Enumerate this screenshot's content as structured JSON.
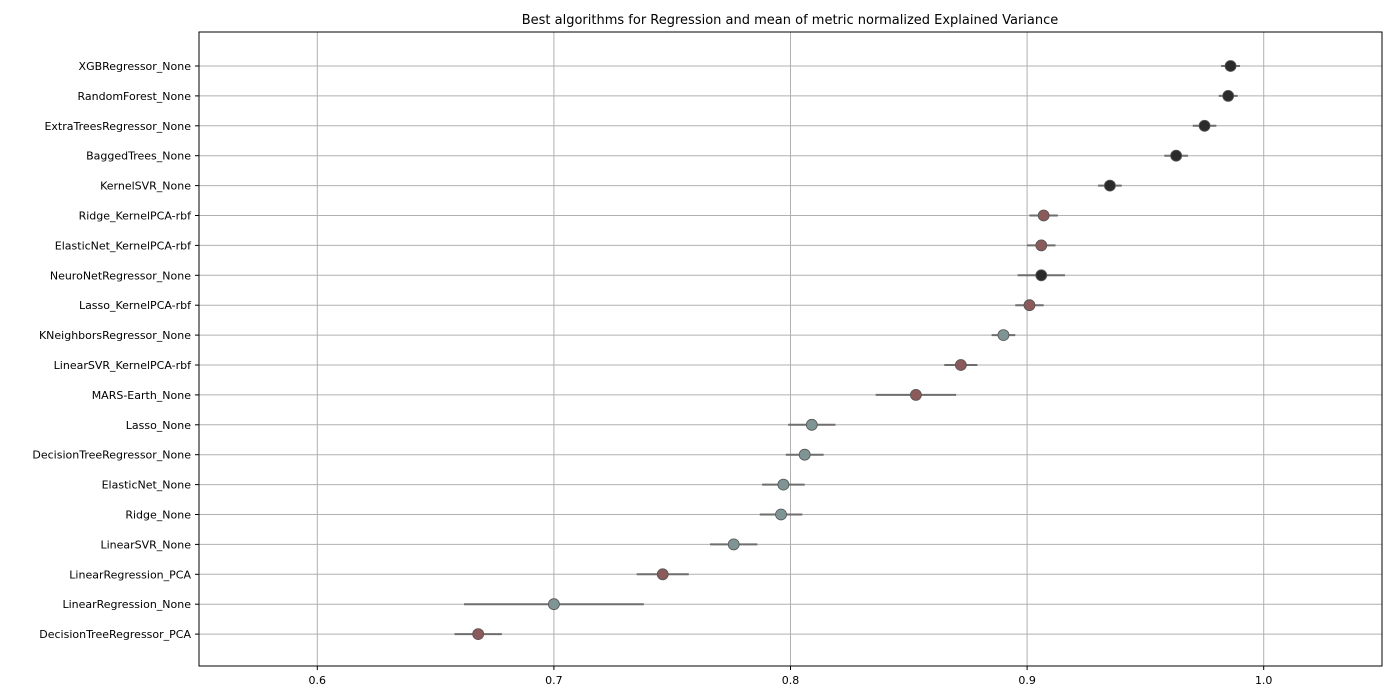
{
  "chart_data": {
    "type": "scatter",
    "subtype": "dot-with-error-bars",
    "title": "Best algorithms for Regression and mean of metric normalized Explained Variance",
    "xlabel": "",
    "ylabel": "",
    "xlim": [
      0.55,
      1.05
    ],
    "x_ticks": [
      0.6,
      0.7,
      0.8,
      0.9,
      1.0
    ],
    "x_tick_labels": [
      "0.6",
      "0.7",
      "0.8",
      "0.9",
      "1.0"
    ],
    "grid": true,
    "legend": "none",
    "colors": {
      "black": "#2b2b2b",
      "brown": "#8b5a5a",
      "gray": "#7f9494",
      "error_bar": "#6e6e6e"
    },
    "categories": [
      "XGBRegressor_None",
      "RandomForest_None",
      "ExtraTreesRegressor_None",
      "BaggedTrees_None",
      "KernelSVR_None",
      "Ridge_KernelPCA-rbf",
      "ElasticNet_KernelPCA-rbf",
      "NeuroNetRegressor_None",
      "Lasso_KernelPCA-rbf",
      "KNeighborsRegressor_None",
      "LinearSVR_KernelPCA-rbf",
      "MARS-Earth_None",
      "Lasso_None",
      "DecisionTreeRegressor_None",
      "ElasticNet_None",
      "Ridge_None",
      "LinearSVR_None",
      "LinearRegression_PCA",
      "LinearRegression_None",
      "DecisionTreeRegressor_PCA"
    ],
    "values": [
      0.986,
      0.985,
      0.975,
      0.963,
      0.935,
      0.907,
      0.906,
      0.906,
      0.901,
      0.89,
      0.872,
      0.853,
      0.809,
      0.806,
      0.797,
      0.796,
      0.776,
      0.746,
      0.7,
      0.668
    ],
    "error": [
      0.004,
      0.004,
      0.005,
      0.005,
      0.005,
      0.006,
      0.006,
      0.01,
      0.006,
      0.005,
      0.007,
      0.017,
      0.01,
      0.008,
      0.009,
      0.009,
      0.01,
      0.011,
      0.038,
      0.01
    ],
    "point_colors": [
      "black",
      "black",
      "black",
      "black",
      "black",
      "brown",
      "brown",
      "black",
      "brown",
      "gray",
      "brown",
      "brown",
      "gray",
      "gray",
      "gray",
      "gray",
      "gray",
      "brown",
      "gray",
      "brown"
    ]
  }
}
